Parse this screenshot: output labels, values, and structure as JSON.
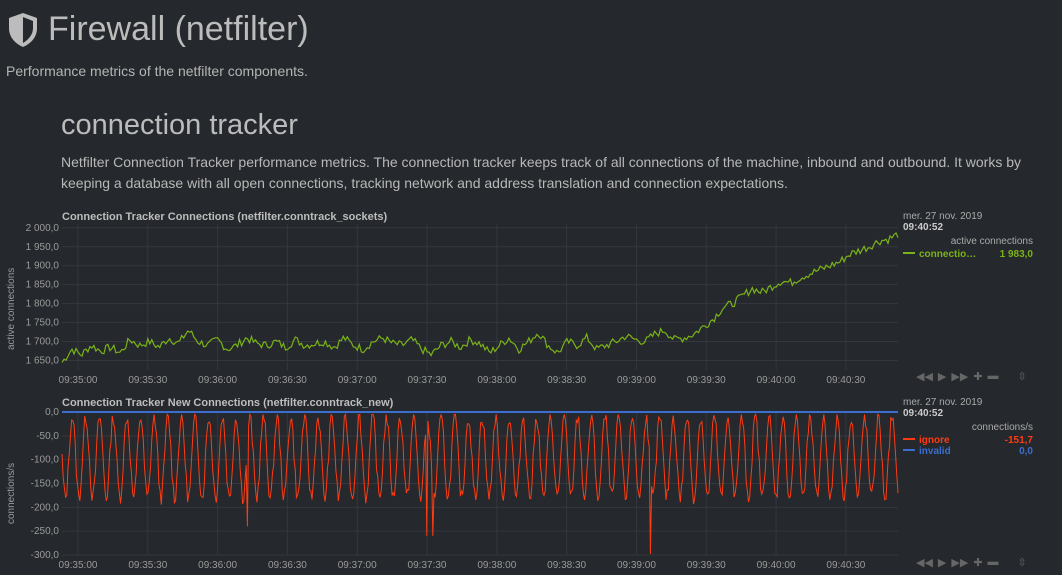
{
  "page": {
    "title": "Firewall (netfilter)",
    "subtitle": "Performance metrics of the netfilter components."
  },
  "section": {
    "title": "connection tracker",
    "description": "Netfilter Connection Tracker performance metrics. The connection tracker keeps track of all connections of the machine, inbound and outbound. It works by keeping a database with all open connections, tracking network and address translation and connection expectations."
  },
  "toolbar_icons": [
    "arrow-left-icon",
    "play-icon",
    "arrow-right-icon",
    "zoom-in-icon",
    "zoom-out-icon",
    "resize-handle-icon"
  ],
  "chart_data": [
    {
      "type": "line",
      "title": "Connection Tracker Connections (netfilter.conntrack_sockets)",
      "ylabel": "active connections",
      "units": "active connections",
      "ylim": [
        1625,
        2010
      ],
      "yticks": [
        "2 000,0",
        "1 950,0",
        "1 900,0",
        "1 850,0",
        "1 800,0",
        "1 750,0",
        "1 700,0",
        "1 650,0"
      ],
      "ytick_values": [
        2000,
        1950,
        1900,
        1850,
        1800,
        1750,
        1700,
        1650
      ],
      "xticks": [
        "09:35:00",
        "09:35:30",
        "09:36:00",
        "09:36:30",
        "09:37:00",
        "09:37:30",
        "09:38:00",
        "09:38:30",
        "09:39:00",
        "09:39:30",
        "09:40:00",
        "09:40:30"
      ],
      "grid": true,
      "legend": {
        "date": "mer. 27 nov. 2019",
        "time": "09:40:52",
        "entries": [
          {
            "name": "connectio…",
            "value": "1 983,0",
            "color": "#7ab317"
          }
        ]
      },
      "series": [
        {
          "name": "connections",
          "color": "#7ab317",
          "x_range": [
            "09:35:00",
            "09:40:52"
          ],
          "values": [
            1645,
            1680,
            1665,
            1690,
            1675,
            1685,
            1670,
            1705,
            1690,
            1700,
            1685,
            1710,
            1695,
            1730,
            1700,
            1690,
            1705,
            1680,
            1690,
            1710,
            1695,
            1690,
            1700,
            1685,
            1705,
            1690,
            1695,
            1700,
            1685,
            1710,
            1690,
            1680,
            1700,
            1710,
            1695,
            1690,
            1705,
            1680,
            1665,
            1690,
            1700,
            1685,
            1705,
            1695,
            1670,
            1690,
            1710,
            1680,
            1700,
            1725,
            1690,
            1670,
            1700,
            1690,
            1710,
            1680,
            1690,
            1700,
            1715,
            1705,
            1700,
            1720,
            1730,
            1705,
            1710,
            1720,
            1740,
            1760,
            1790,
            1800,
            1820,
            1840,
            1830,
            1845,
            1860,
            1855,
            1870,
            1880,
            1890,
            1900,
            1910,
            1930,
            1940,
            1950,
            1965,
            1970,
            1983
          ]
        }
      ]
    },
    {
      "type": "line",
      "title": "Connection Tracker New Connections (netfilter.conntrack_new)",
      "ylabel": "connections/s",
      "units": "connections/s",
      "ylim": [
        -300,
        0
      ],
      "yticks": [
        "0,0",
        "-50,0",
        "-100,0",
        "-150,0",
        "-200,0",
        "-250,0",
        "-300,0"
      ],
      "ytick_values": [
        0,
        -50,
        -100,
        -150,
        -200,
        -250,
        -300
      ],
      "xticks": [
        "09:35:00",
        "09:35:30",
        "09:36:00",
        "09:36:30",
        "09:37:00",
        "09:37:30",
        "09:38:00",
        "09:38:30",
        "09:39:00",
        "09:39:30",
        "09:40:00",
        "09:40:30"
      ],
      "grid": true,
      "legend": {
        "date": "mer. 27 nov. 2019",
        "time": "09:40:52",
        "entries": [
          {
            "name": "ignore",
            "value": "-151,7",
            "color": "#ff3c11"
          },
          {
            "name": "invalid",
            "value": "0,0",
            "color": "#3b6ecf"
          }
        ]
      },
      "series": [
        {
          "name": "ignore",
          "color": "#ff3c11",
          "pattern": "oscillating",
          "min": -300,
          "max": -5,
          "typical_low": -180,
          "typical_high": -10
        },
        {
          "name": "invalid",
          "color": "#3b6ecf",
          "values_constant": 0
        }
      ]
    }
  ]
}
